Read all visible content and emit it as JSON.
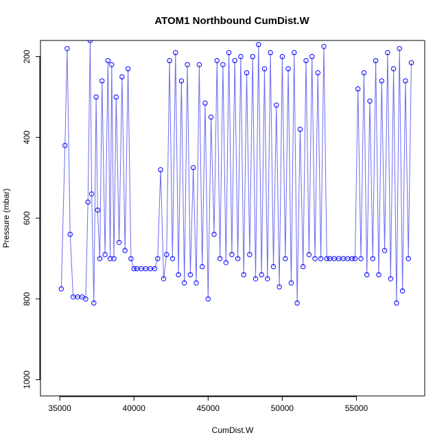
{
  "chart_data": {
    "type": "line",
    "title": "ATOM1 Northbound CumDist.W",
    "xlabel": "CumDist.W",
    "ylabel": "Pressure (mbar)",
    "xlim": [
      33700,
      59600
    ],
    "ylim": [
      1040,
      160
    ],
    "y_reversed": true,
    "x_ticks": [
      35000,
      40000,
      45000,
      50000,
      55000
    ],
    "x_tick_labels": [
      "35000",
      "40000",
      "45000",
      "50000",
      "55000"
    ],
    "y_ticks": [
      200,
      400,
      600,
      800,
      1000
    ],
    "y_tick_labels": [
      "200",
      "400",
      "600",
      "800",
      "1000"
    ],
    "grid": false,
    "marker": "open-circle",
    "colors": {
      "series": "#0000ff",
      "line": "#6b6bf0",
      "axis": "#000000"
    },
    "series": [
      {
        "x": [
          35100,
          35350,
          35500,
          35700,
          35900,
          36200,
          36500,
          36750,
          36900,
          37050,
          37150,
          37300,
          37450,
          37550,
          37700,
          37850,
          38050,
          38250,
          38400,
          38500,
          38650,
          38800,
          39000,
          39200,
          39400,
          39600,
          39800,
          40000,
          40200,
          40500,
          40800,
          41100,
          41400,
          41600,
          41800,
          42000,
          42200,
          42400,
          42600,
          42800,
          43000,
          43200,
          43400,
          43600,
          43800,
          44000,
          44200,
          44400,
          44600,
          44800,
          45000,
          45200,
          45400,
          45600,
          45800,
          46000,
          46200,
          46400,
          46600,
          46800,
          47000,
          47200,
          47400,
          47600,
          47800,
          48000,
          48200,
          48400,
          48600,
          48800,
          49000,
          49200,
          49400,
          49600,
          49800,
          50000,
          50200,
          50400,
          50600,
          50800,
          51000,
          51200,
          51400,
          51600,
          51800,
          52000,
          52200,
          52400,
          52600,
          52800,
          53000,
          53200,
          53500,
          53800,
          54100,
          54400,
          54700,
          54900,
          55100,
          55300,
          55500,
          55700,
          55900,
          56100,
          56300,
          56500,
          56700,
          56900,
          57100,
          57300,
          57500,
          57700,
          57900,
          58100,
          58300,
          58500,
          58700
        ],
        "y": [
          775,
          420,
          180,
          640,
          795,
          795,
          795,
          800,
          560,
          160,
          540,
          810,
          300,
          580,
          700,
          260,
          690,
          210,
          700,
          220,
          700,
          300,
          660,
          250,
          680,
          230,
          700,
          725,
          725,
          725,
          725,
          725,
          725,
          700,
          480,
          750,
          690,
          210,
          700,
          190,
          740,
          260,
          760,
          220,
          740,
          475,
          760,
          220,
          720,
          315,
          800,
          350,
          640,
          210,
          700,
          220,
          710,
          190,
          690,
          210,
          700,
          200,
          740,
          240,
          690,
          200,
          750,
          170,
          740,
          230,
          750,
          190,
          720,
          320,
          770,
          200,
          700,
          230,
          760,
          190,
          810,
          380,
          720,
          210,
          690,
          200,
          700,
          240,
          700,
          175,
          700,
          700,
          700,
          700,
          700,
          700,
          700,
          700,
          280,
          700,
          240,
          740,
          310,
          700,
          210,
          740,
          260,
          680,
          190,
          750,
          230,
          810,
          180,
          780,
          260,
          700,
          215
        ]
      }
    ]
  }
}
